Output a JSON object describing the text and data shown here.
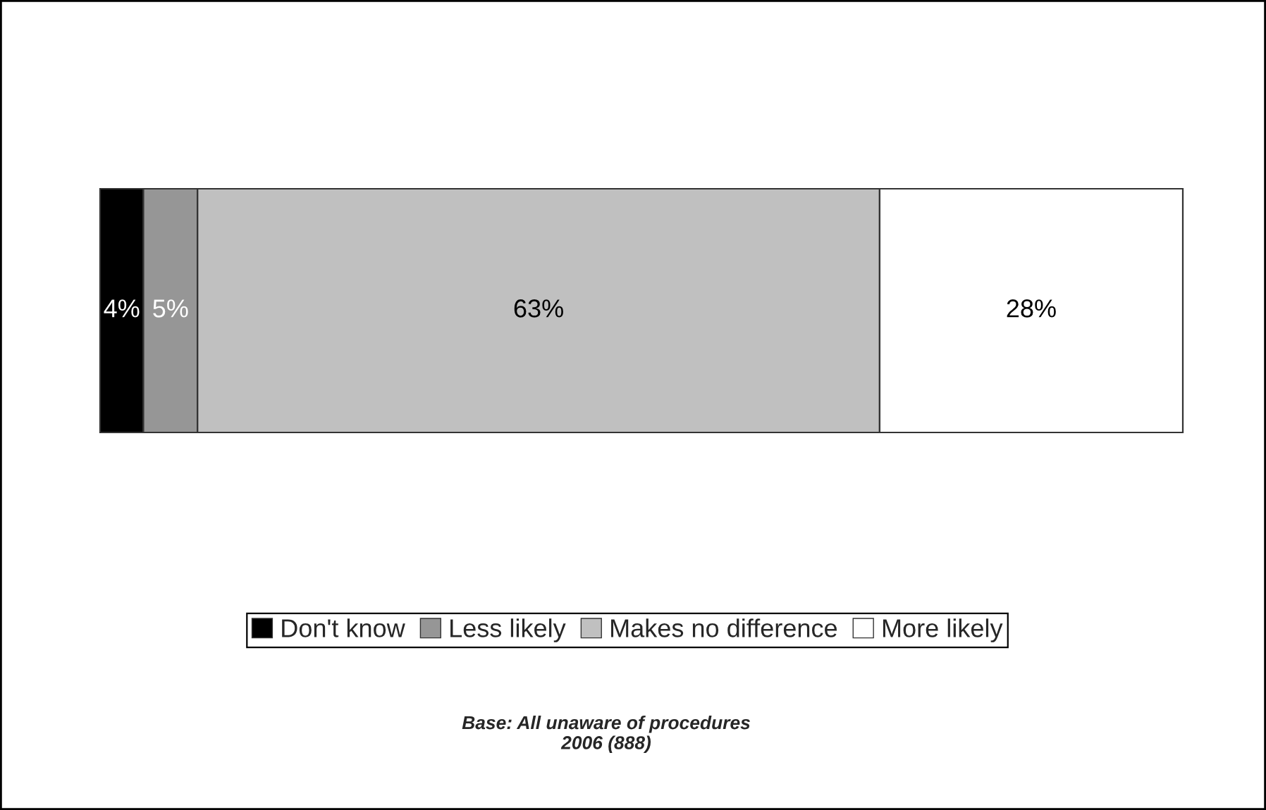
{
  "chart_data": {
    "type": "bar",
    "orientation": "horizontal",
    "stacked": true,
    "categories": [
      null
    ],
    "xlim": [
      0,
      100
    ],
    "tick_labels": false,
    "legend": "bottom",
    "series": [
      {
        "name": "Don't know",
        "color": "#000000",
        "values": [
          4
        ],
        "value_labels": [
          "4%"
        ]
      },
      {
        "name": "Less likely",
        "color": "#969696",
        "values": [
          5
        ],
        "value_labels": [
          "5%"
        ]
      },
      {
        "name": "Makes no difference",
        "color": "#c0c0c0",
        "values": [
          63
        ],
        "value_labels": [
          "63%"
        ]
      },
      {
        "name": "More likely",
        "color": "#ffffff",
        "values": [
          28
        ],
        "value_labels": [
          "28%"
        ]
      }
    ],
    "annotations": [
      "Base: All unaware of procedures\n2006 (888)"
    ]
  }
}
